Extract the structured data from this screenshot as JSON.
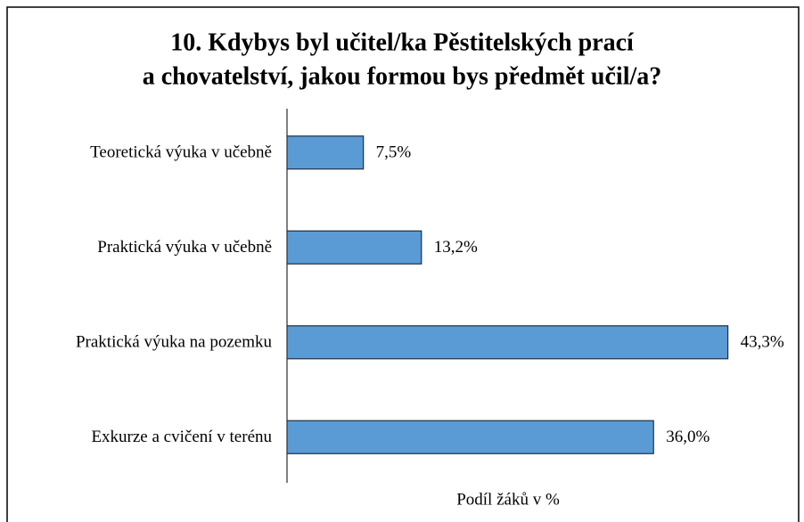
{
  "chart_data": {
    "type": "barh",
    "title": [
      "10. Kdybys byl učitel/ka Pěstitelských prací",
      "a chovatelství, jakou formou bys předmět učil/a?"
    ],
    "categories": [
      "Teoretická výuka v učebně",
      "Praktická výuka v učebně",
      "Praktická výuka na pozemku",
      "Exkurze a cvičení v terénu"
    ],
    "values": [
      7.5,
      13.2,
      43.3,
      36.0
    ],
    "value_labels": [
      "7,5%",
      "13,2%",
      "43,3%",
      "36,0%"
    ],
    "color": "#5b9bd5",
    "xlabel": "Podíl žáků v %",
    "xlim": [
      0,
      45
    ]
  }
}
